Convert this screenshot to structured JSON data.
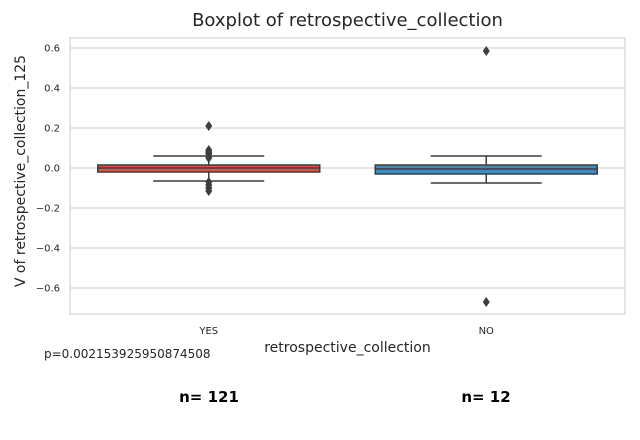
{
  "chart_data": {
    "type": "box",
    "title": "Boxplot of retrospective_collection",
    "xlabel": "retrospective_collection",
    "ylabel": "V of retrospective_collection_125",
    "ylim": [
      -0.73,
      0.65
    ],
    "yticks": [
      0.6,
      0.4,
      0.2,
      0.0,
      -0.2,
      -0.4,
      -0.6
    ],
    "ytick_labels": [
      "0.6",
      "0.4",
      "0.2",
      "0.0",
      "−0.2",
      "−0.4",
      "−0.6"
    ],
    "grid": true,
    "categories": [
      "YES",
      "NO"
    ],
    "boxes": [
      {
        "category": "YES",
        "color": "#d9573f",
        "q1": -0.02,
        "median": 0.0,
        "q3": 0.015,
        "whisker_low": -0.065,
        "whisker_high": 0.06,
        "outliers": [
          0.21,
          0.09,
          0.08,
          0.075,
          0.07,
          0.05,
          -0.07,
          -0.085,
          -0.1,
          -0.115
        ]
      },
      {
        "category": "NO",
        "color": "#3a8dc5",
        "q1": -0.03,
        "median": -0.005,
        "q3": 0.015,
        "whisker_low": -0.075,
        "whisker_high": 0.06,
        "outliers": [
          0.585,
          -0.67
        ]
      }
    ],
    "annotations": {
      "p_value": "p=0.002153925950874508",
      "counts": [
        "n= 121",
        "n= 12"
      ]
    }
  }
}
